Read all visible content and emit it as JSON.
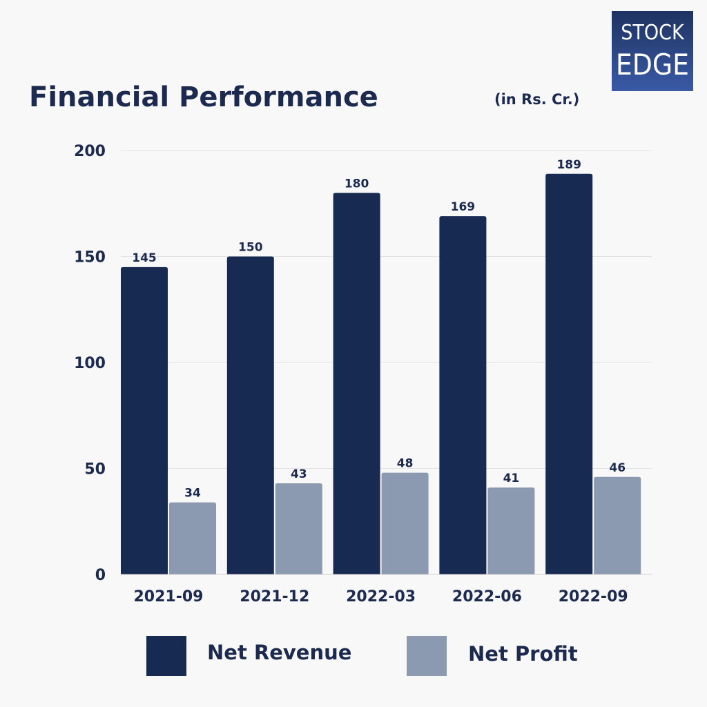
{
  "brand": {
    "line1": "STOCK",
    "line2": "EDGE"
  },
  "header": {
    "title": "Financial Performance",
    "unit": "(in Rs. Cr.)"
  },
  "colors": {
    "net_revenue": "#172a52",
    "net_profit": "#8c9ab1",
    "text": "#1c2a50",
    "grid": "#e2e2e2"
  },
  "chart_data": {
    "type": "bar",
    "title": "Financial Performance",
    "unit": "(in Rs. Cr.)",
    "categories": [
      "2021-09",
      "2021-12",
      "2022-03",
      "2022-06",
      "2022-09"
    ],
    "series": [
      {
        "name": "Net Revenue",
        "values": [
          145,
          150,
          180,
          169,
          189
        ]
      },
      {
        "name": "Net Profit",
        "values": [
          34,
          43,
          48,
          41,
          46
        ]
      }
    ],
    "ylim": [
      0,
      200
    ],
    "yticks": [
      0,
      50,
      100,
      150,
      200
    ],
    "grid": true,
    "legend": "bottom"
  }
}
